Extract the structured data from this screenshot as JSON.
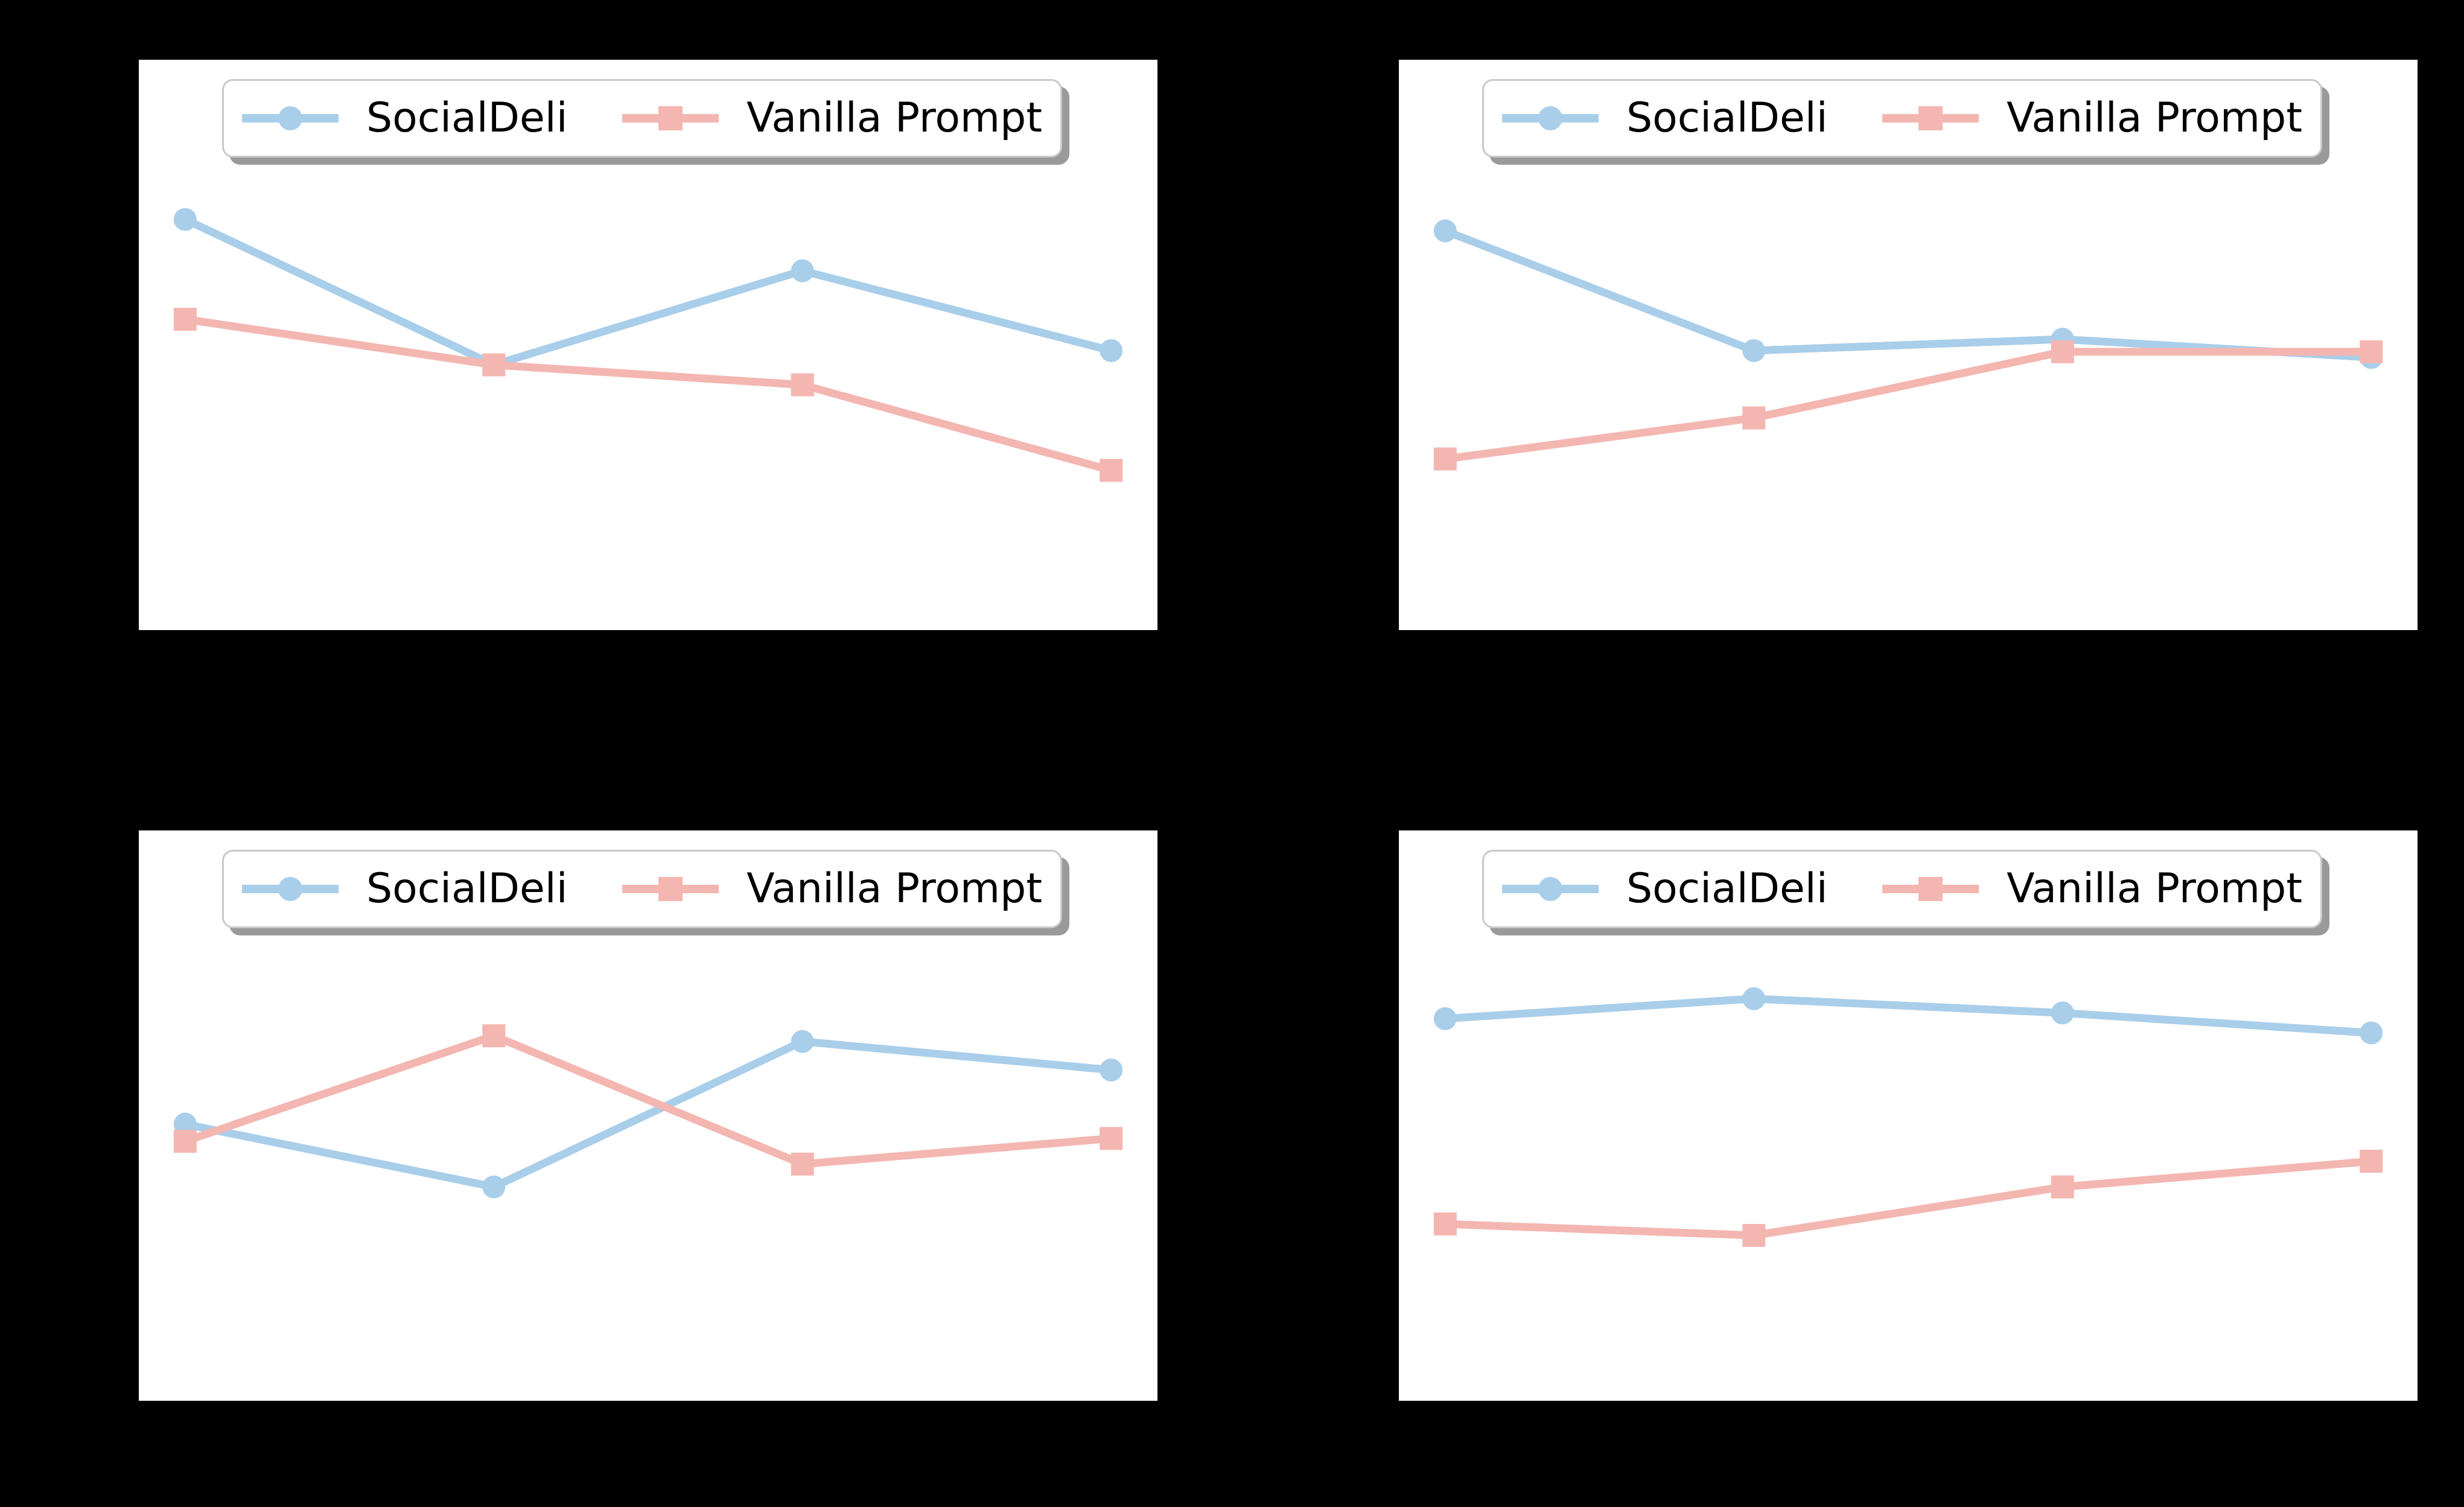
{
  "figure": {
    "background_color": "#000000",
    "panel_background_color": "#ffffff",
    "rows": 2,
    "cols": 2,
    "visible_text_outside_panels": ""
  },
  "legend": {
    "border_color": "#c9c9c9",
    "shadow_color": "#9a9a9a",
    "entries": [
      {
        "label": "SocialDeli",
        "marker": "circle",
        "color": "#a9ceea"
      },
      {
        "label": "Vanilla Prompt",
        "marker": "square",
        "color": "#f4b6b1"
      }
    ]
  },
  "chart_data": [
    {
      "position": "top-left",
      "type": "line",
      "title": "",
      "xlabel": "",
      "ylabel": "",
      "x": [
        1,
        2,
        3,
        4
      ],
      "axis_tick_labels_visible": false,
      "y_value_scale": "normalized fraction of plot height (0=bottom, 1=top); no axis tick labels are visible in the image",
      "series": [
        {
          "name": "SocialDeli",
          "marker": "circle",
          "color": "#a9ceea",
          "values": [
            0.72,
            0.465,
            0.63,
            0.49
          ]
        },
        {
          "name": "Vanilla Prompt",
          "marker": "square",
          "color": "#f4b6b1",
          "values": [
            0.545,
            0.465,
            0.43,
            0.28
          ]
        }
      ]
    },
    {
      "position": "top-right",
      "type": "line",
      "title": "",
      "xlabel": "",
      "ylabel": "",
      "x": [
        1,
        2,
        3,
        4
      ],
      "axis_tick_labels_visible": false,
      "y_value_scale": "normalized fraction of plot height (0=bottom, 1=top); no axis tick labels are visible in the image",
      "series": [
        {
          "name": "SocialDeli",
          "marker": "circle",
          "color": "#a9ceea",
          "values": [
            0.7,
            0.49,
            0.51,
            0.478
          ]
        },
        {
          "name": "Vanilla Prompt",
          "marker": "square",
          "color": "#f4b6b1",
          "values": [
            0.3,
            0.372,
            0.488,
            0.488
          ]
        }
      ]
    },
    {
      "position": "bottom-left",
      "type": "line",
      "title": "",
      "xlabel": "",
      "ylabel": "",
      "x": [
        1,
        2,
        3,
        4
      ],
      "axis_tick_labels_visible": false,
      "y_value_scale": "normalized fraction of plot height (0=bottom, 1=top); no axis tick labels are visible in the image",
      "series": [
        {
          "name": "SocialDeli",
          "marker": "circle",
          "color": "#a9ceea",
          "values": [
            0.485,
            0.375,
            0.63,
            0.58
          ]
        },
        {
          "name": "Vanilla Prompt",
          "marker": "square",
          "color": "#f4b6b1",
          "values": [
            0.455,
            0.64,
            0.415,
            0.46
          ]
        }
      ]
    },
    {
      "position": "bottom-right",
      "type": "line",
      "title": "",
      "xlabel": "",
      "ylabel": "",
      "x": [
        1,
        2,
        3,
        4
      ],
      "axis_tick_labels_visible": false,
      "y_value_scale": "normalized fraction of plot height (0=bottom, 1=top); no axis tick labels are visible in the image",
      "series": [
        {
          "name": "SocialDeli",
          "marker": "circle",
          "color": "#a9ceea",
          "values": [
            0.67,
            0.705,
            0.68,
            0.645
          ]
        },
        {
          "name": "Vanilla Prompt",
          "marker": "square",
          "color": "#f4b6b1",
          "values": [
            0.31,
            0.29,
            0.375,
            0.42
          ]
        }
      ]
    }
  ]
}
